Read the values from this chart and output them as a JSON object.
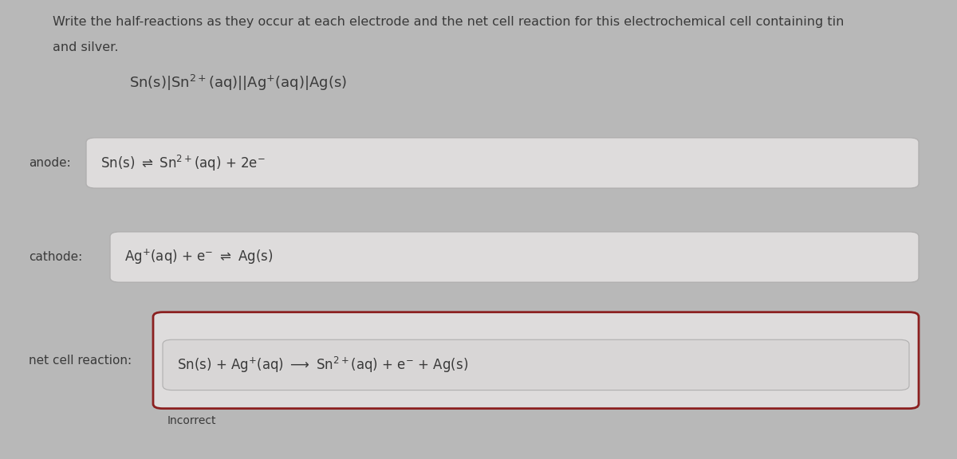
{
  "background_color": "#b8b8b8",
  "panel_color": "#d0cece",
  "box_color": "#dedcdc",
  "title_text_line1": "Write the half-reactions as they occur at each electrode and the net cell reaction for this electrochemical cell containing tin",
  "title_text_line2": "and silver.",
  "cell_notation_raw": "Sn(s)|Sn²⁺(aq)||Ag⁺(aq)|Ag(s)",
  "anode_label": "anode:",
  "anode_reaction": "Sn(s) $\\rightleftharpoons$ Sn$^{2+}$(aq) + 2e$^{-}$",
  "cathode_label": "cathode:",
  "cathode_reaction": "Ag$^{+}$(aq) + e$^{-}$ $\\rightleftharpoons$ Ag(s)",
  "net_label": "net cell reaction:",
  "net_reaction": "Sn(s) + Ag$^{+}$(aq) $\\longrightarrow$ Sn$^{2+}$(aq) + e$^{-}$ + Ag(s)",
  "incorrect_text": "Incorrect",
  "text_color": "#3a3a3a",
  "label_color": "#3a3a3a",
  "box_border_color": "#b0afaf",
  "net_border_color": "#8b2020",
  "inner_box_color": "#d8d6d6",
  "font_size_title": 11.5,
  "font_size_notation": 13,
  "font_size_reaction": 12,
  "font_size_label": 11,
  "font_size_incorrect": 10
}
